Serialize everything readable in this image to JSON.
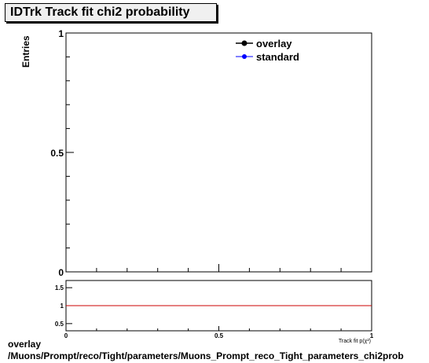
{
  "chart_data": [
    {
      "type": "scatter",
      "title": "IDTrk Track fit chi2 probability",
      "ylabel": "Entries",
      "xlim": [
        0,
        1
      ],
      "ylim": [
        0,
        1
      ],
      "y_ticks": [
        "0",
        "0.5",
        "1"
      ],
      "legend": {
        "placement": "top-right",
        "entries": [
          "overlay",
          "standard"
        ]
      },
      "series": [
        {
          "name": "overlay",
          "color": "#000000",
          "points": []
        },
        {
          "name": "standard",
          "color": "#0000ff",
          "points": []
        }
      ]
    },
    {
      "type": "line",
      "xlabel": "Track fit p(χ²)",
      "xlim": [
        0,
        1
      ],
      "ylim": [
        0.3,
        1.7
      ],
      "x_ticks": [
        "0",
        "0.5",
        "1"
      ],
      "y_ticks": [
        "0.5",
        "1",
        "1.5"
      ],
      "reference_line": {
        "y": 1,
        "color": "#cc0000"
      }
    }
  ],
  "footer": {
    "line1": "overlay",
    "line2": "/Muons/Prompt/reco/Tight/parameters/Muons_Prompt_reco_Tight_parameters_chi2prob"
  }
}
